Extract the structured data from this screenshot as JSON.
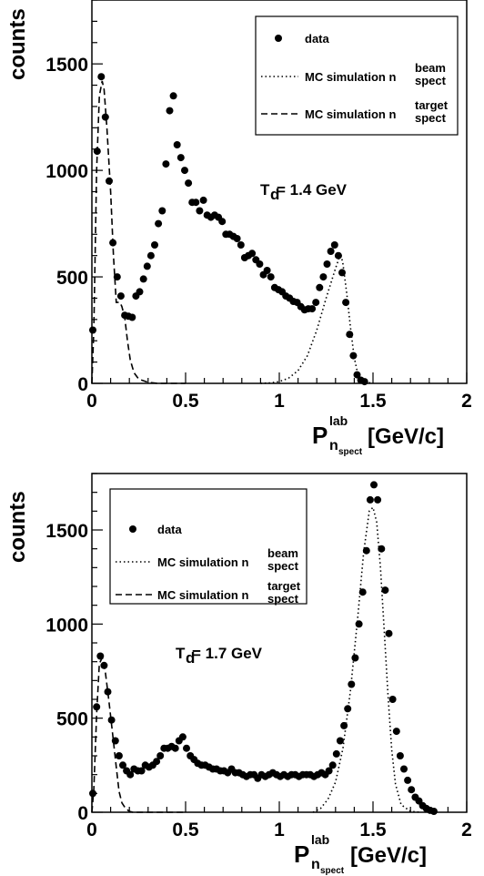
{
  "chart_data": [
    {
      "type": "scatter",
      "ylabel": "counts",
      "xlabel_main": "P",
      "xlabel_sup": "lab",
      "xlabel_sub_main": "n",
      "xlabel_sub_sub": "spect",
      "xlabel_units": "[GeV/c]",
      "annotation_main": "T",
      "annotation_sub": "d",
      "annotation_rest": " = 1.4 GeV",
      "xlim": [
        0,
        2
      ],
      "ylim": [
        0,
        1800
      ],
      "x_ticks": [
        0,
        0.5,
        1,
        1.5,
        2
      ],
      "x_tick_labels": [
        "0",
        "0.5",
        "1",
        "1.5",
        "2"
      ],
      "y_ticks": [
        0,
        500,
        1000,
        1500
      ],
      "y_tick_labels": [
        "0",
        "500",
        "1000",
        "1500"
      ],
      "grid": false,
      "legend_position": "top-right",
      "legend": [
        {
          "label": "data",
          "sup": "",
          "sub": "",
          "style": "marker"
        },
        {
          "label": "MC simulation n",
          "sup": "beam",
          "sub": "spect",
          "style": "dotted"
        },
        {
          "label": "MC simulation n",
          "sup": "target",
          "sub": "spect",
          "style": "dashed"
        }
      ],
      "series": [
        {
          "name": "data",
          "style": "marker",
          "points": [
            [
              0.005,
              250
            ],
            [
              0.028,
              1090
            ],
            [
              0.05,
              1440
            ],
            [
              0.072,
              1250
            ],
            [
              0.092,
              950
            ],
            [
              0.112,
              660
            ],
            [
              0.135,
              500
            ],
            [
              0.155,
              410
            ],
            [
              0.175,
              320
            ],
            [
              0.195,
              315
            ],
            [
              0.215,
              310
            ],
            [
              0.235,
              410
            ],
            [
              0.255,
              430
            ],
            [
              0.275,
              490
            ],
            [
              0.295,
              550
            ],
            [
              0.315,
              600
            ],
            [
              0.335,
              650
            ],
            [
              0.355,
              750
            ],
            [
              0.375,
              810
            ],
            [
              0.395,
              1030
            ],
            [
              0.415,
              1280
            ],
            [
              0.435,
              1350
            ],
            [
              0.455,
              1120
            ],
            [
              0.475,
              1060
            ],
            [
              0.495,
              1000
            ],
            [
              0.515,
              940
            ],
            [
              0.535,
              850
            ],
            [
              0.555,
              850
            ],
            [
              0.575,
              810
            ],
            [
              0.595,
              860
            ],
            [
              0.615,
              790
            ],
            [
              0.635,
              780
            ],
            [
              0.655,
              790
            ],
            [
              0.675,
              780
            ],
            [
              0.695,
              760
            ],
            [
              0.715,
              700
            ],
            [
              0.735,
              700
            ],
            [
              0.755,
              690
            ],
            [
              0.775,
              680
            ],
            [
              0.795,
              650
            ],
            [
              0.815,
              590
            ],
            [
              0.835,
              600
            ],
            [
              0.855,
              610
            ],
            [
              0.875,
              580
            ],
            [
              0.895,
              560
            ],
            [
              0.915,
              510
            ],
            [
              0.935,
              530
            ],
            [
              0.955,
              500
            ],
            [
              0.975,
              450
            ],
            [
              0.995,
              440
            ],
            [
              1.015,
              430
            ],
            [
              1.035,
              410
            ],
            [
              1.055,
              400
            ],
            [
              1.075,
              385
            ],
            [
              1.095,
              380
            ],
            [
              1.115,
              360
            ],
            [
              1.135,
              345
            ],
            [
              1.155,
              350
            ],
            [
              1.175,
              350
            ],
            [
              1.195,
              380
            ],
            [
              1.215,
              450
            ],
            [
              1.235,
              500
            ],
            [
              1.255,
              560
            ],
            [
              1.275,
              620
            ],
            [
              1.295,
              650
            ],
            [
              1.315,
              600
            ],
            [
              1.335,
              520
            ],
            [
              1.355,
              380
            ],
            [
              1.375,
              230
            ],
            [
              1.395,
              130
            ],
            [
              1.415,
              40
            ],
            [
              1.435,
              15
            ],
            [
              1.455,
              8
            ]
          ]
        },
        {
          "name": "MC simulation beam",
          "style": "dotted",
          "points": [
            [
              0.9,
              0
            ],
            [
              0.95,
              2
            ],
            [
              1.0,
              8
            ],
            [
              1.05,
              25
            ],
            [
              1.1,
              60
            ],
            [
              1.15,
              130
            ],
            [
              1.2,
              250
            ],
            [
              1.25,
              400
            ],
            [
              1.3,
              540
            ],
            [
              1.32,
              590
            ],
            [
              1.33,
              600
            ],
            [
              1.34,
              560
            ],
            [
              1.36,
              420
            ],
            [
              1.38,
              260
            ],
            [
              1.4,
              120
            ],
            [
              1.42,
              40
            ],
            [
              1.45,
              8
            ],
            [
              1.5,
              0
            ]
          ]
        },
        {
          "name": "MC simulation target",
          "style": "dashed",
          "points": [
            [
              0.0,
              0
            ],
            [
              0.01,
              250
            ],
            [
              0.025,
              1000
            ],
            [
              0.04,
              1350
            ],
            [
              0.055,
              1420
            ],
            [
              0.065,
              1380
            ],
            [
              0.08,
              1200
            ],
            [
              0.1,
              900
            ],
            [
              0.115,
              600
            ],
            [
              0.13,
              380
            ],
            [
              0.15,
              380
            ],
            [
              0.16,
              360
            ],
            [
              0.175,
              310
            ],
            [
              0.19,
              200
            ],
            [
              0.205,
              110
            ],
            [
              0.225,
              50
            ],
            [
              0.25,
              20
            ],
            [
              0.3,
              5
            ],
            [
              0.35,
              0
            ],
            [
              0.5,
              0
            ]
          ]
        }
      ]
    },
    {
      "type": "scatter",
      "ylabel": "counts",
      "xlabel_main": "P",
      "xlabel_sup": "lab",
      "xlabel_sub_main": "n",
      "xlabel_sub_sub": "spect",
      "xlabel_units": "[GeV/c]",
      "annotation_main": "T",
      "annotation_sub": "d",
      "annotation_rest": " = 1.7 GeV",
      "xlim": [
        0,
        2
      ],
      "ylim": [
        0,
        1800
      ],
      "x_ticks": [
        0,
        0.5,
        1,
        1.5,
        2
      ],
      "x_tick_labels": [
        "0",
        "0.5",
        "1",
        "1.5",
        "2"
      ],
      "y_ticks": [
        0,
        500,
        1000,
        1500
      ],
      "y_tick_labels": [
        "0",
        "500",
        "1000",
        "1500"
      ],
      "grid": false,
      "legend_position": "top-left",
      "legend": [
        {
          "label": "data",
          "sup": "",
          "sub": "",
          "style": "marker"
        },
        {
          "label": "MC simulation n",
          "sup": "beam",
          "sub": "spect",
          "style": "dotted"
        },
        {
          "label": "MC simulation n",
          "sup": "target",
          "sub": "spect",
          "style": "dashed"
        }
      ],
      "series": [
        {
          "name": "data",
          "style": "marker",
          "points": [
            [
              0.005,
              100
            ],
            [
              0.025,
              560
            ],
            [
              0.045,
              830
            ],
            [
              0.065,
              780
            ],
            [
              0.085,
              640
            ],
            [
              0.105,
              490
            ],
            [
              0.125,
              380
            ],
            [
              0.145,
              300
            ],
            [
              0.165,
              250
            ],
            [
              0.185,
              220
            ],
            [
              0.205,
              200
            ],
            [
              0.225,
              230
            ],
            [
              0.245,
              220
            ],
            [
              0.265,
              220
            ],
            [
              0.285,
              250
            ],
            [
              0.305,
              240
            ],
            [
              0.325,
              250
            ],
            [
              0.345,
              270
            ],
            [
              0.365,
              300
            ],
            [
              0.385,
              340
            ],
            [
              0.405,
              340
            ],
            [
              0.425,
              350
            ],
            [
              0.445,
              340
            ],
            [
              0.465,
              380
            ],
            [
              0.485,
              400
            ],
            [
              0.505,
              340
            ],
            [
              0.525,
              300
            ],
            [
              0.545,
              280
            ],
            [
              0.565,
              260
            ],
            [
              0.585,
              250
            ],
            [
              0.605,
              250
            ],
            [
              0.625,
              240
            ],
            [
              0.645,
              230
            ],
            [
              0.665,
              230
            ],
            [
              0.685,
              220
            ],
            [
              0.705,
              220
            ],
            [
              0.725,
              210
            ],
            [
              0.745,
              230
            ],
            [
              0.765,
              210
            ],
            [
              0.785,
              210
            ],
            [
              0.805,
              200
            ],
            [
              0.825,
              190
            ],
            [
              0.845,
              200
            ],
            [
              0.865,
              200
            ],
            [
              0.885,
              180
            ],
            [
              0.905,
              200
            ],
            [
              0.925,
              190
            ],
            [
              0.945,
              200
            ],
            [
              0.965,
              210
            ],
            [
              0.985,
              200
            ],
            [
              1.005,
              190
            ],
            [
              1.025,
              200
            ],
            [
              1.045,
              190
            ],
            [
              1.065,
              200
            ],
            [
              1.085,
              200
            ],
            [
              1.105,
              190
            ],
            [
              1.125,
              200
            ],
            [
              1.145,
              200
            ],
            [
              1.165,
              200
            ],
            [
              1.185,
              190
            ],
            [
              1.205,
              200
            ],
            [
              1.225,
              210
            ],
            [
              1.245,
              200
            ],
            [
              1.265,
              220
            ],
            [
              1.285,
              250
            ],
            [
              1.305,
              310
            ],
            [
              1.325,
              380
            ],
            [
              1.345,
              460
            ],
            [
              1.365,
              550
            ],
            [
              1.385,
              680
            ],
            [
              1.405,
              820
            ],
            [
              1.425,
              1000
            ],
            [
              1.445,
              1170
            ],
            [
              1.465,
              1390
            ],
            [
              1.485,
              1660
            ],
            [
              1.505,
              1740
            ],
            [
              1.525,
              1660
            ],
            [
              1.545,
              1400
            ],
            [
              1.565,
              1180
            ],
            [
              1.585,
              950
            ],
            [
              1.605,
              600
            ],
            [
              1.625,
              430
            ],
            [
              1.645,
              300
            ],
            [
              1.665,
              230
            ],
            [
              1.685,
              170
            ],
            [
              1.705,
              120
            ],
            [
              1.725,
              80
            ],
            [
              1.745,
              60
            ],
            [
              1.765,
              35
            ],
            [
              1.785,
              20
            ],
            [
              1.805,
              10
            ],
            [
              1.825,
              5
            ]
          ]
        },
        {
          "name": "MC simulation beam",
          "style": "dotted",
          "points": [
            [
              1.18,
              0
            ],
            [
              1.22,
              20
            ],
            [
              1.26,
              70
            ],
            [
              1.3,
              160
            ],
            [
              1.34,
              340
            ],
            [
              1.38,
              650
            ],
            [
              1.42,
              1050
            ],
            [
              1.45,
              1380
            ],
            [
              1.48,
              1600
            ],
            [
              1.5,
              1620
            ],
            [
              1.52,
              1540
            ],
            [
              1.54,
              1300
            ],
            [
              1.56,
              960
            ],
            [
              1.58,
              620
            ],
            [
              1.6,
              330
            ],
            [
              1.62,
              150
            ],
            [
              1.65,
              40
            ],
            [
              1.7,
              5
            ],
            [
              1.75,
              0
            ]
          ]
        },
        {
          "name": "MC simulation target",
          "style": "dashed",
          "points": [
            [
              0.0,
              0
            ],
            [
              0.01,
              120
            ],
            [
              0.025,
              520
            ],
            [
              0.04,
              790
            ],
            [
              0.055,
              820
            ],
            [
              0.07,
              760
            ],
            [
              0.09,
              600
            ],
            [
              0.11,
              420
            ],
            [
              0.13,
              240
            ],
            [
              0.145,
              110
            ],
            [
              0.16,
              50
            ],
            [
              0.18,
              20
            ],
            [
              0.2,
              5
            ],
            [
              0.22,
              0
            ],
            [
              0.5,
              0
            ]
          ]
        }
      ]
    }
  ]
}
